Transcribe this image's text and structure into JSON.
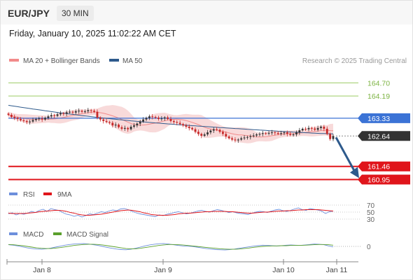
{
  "header": {
    "symbol": "EUR/JPY",
    "timeframe": "30 MIN",
    "datetime": "Friday, January 10, 2025 11:02:22 AM CET"
  },
  "colors": {
    "ma20": "#f28b8b",
    "ma50": "#2e5a8c",
    "bollinger_fill": "#f7d4d4",
    "resistance": "#7cb342",
    "pivot": "#3b73d6",
    "support": "#e0151b",
    "rsi": "#6d8fdc",
    "rsi_ma": "#e0151b",
    "macd": "#6d8fdc",
    "macd_signal": "#5aa02c",
    "bull_candle": "#333333",
    "bear_candle": "#c62828",
    "arrow": "#2e5a8c"
  },
  "legend": {
    "ma20": "MA 20 + Bollinger Bands",
    "ma50": "MA 50",
    "credit": "Research © 2025 Trading Central",
    "rsi": "RSI",
    "rsi_ma": "9MA",
    "macd": "MACD",
    "macd_signal": "MACD Signal"
  },
  "chart_data": [
    {
      "type": "candlestick",
      "title": "",
      "x_ticks": [
        "Jan 8",
        "Jan 9",
        "Jan 10",
        "Jan 11"
      ],
      "ylim": [
        160.8,
        165.2
      ],
      "levels": [
        {
          "value": 164.7,
          "label": "164.70",
          "kind": "resistance"
        },
        {
          "value": 164.19,
          "label": "164.19",
          "kind": "resistance"
        },
        {
          "value": 163.33,
          "label": "163.33",
          "kind": "pivot"
        },
        {
          "value": 162.64,
          "label": "162.64",
          "kind": "current"
        },
        {
          "value": 161.46,
          "label": "161.46",
          "kind": "support"
        },
        {
          "value": 160.95,
          "label": "160.95",
          "kind": "support"
        }
      ],
      "close": [
        163.46,
        163.38,
        163.34,
        163.3,
        163.25,
        163.22,
        163.18,
        163.2,
        163.26,
        163.3,
        163.32,
        163.28,
        163.34,
        163.4,
        163.45,
        163.42,
        163.48,
        163.52,
        163.5,
        163.56,
        163.58,
        163.55,
        163.6,
        163.62,
        163.58,
        163.6,
        163.64,
        163.62,
        163.58,
        163.35,
        163.28,
        163.22,
        163.18,
        163.15,
        163.05,
        163.08,
        162.98,
        162.92,
        162.95,
        162.9,
        163.0,
        163.05,
        163.12,
        163.2,
        163.28,
        163.34,
        163.4,
        163.38,
        163.35,
        163.3,
        163.32,
        163.36,
        163.3,
        163.22,
        163.18,
        163.15,
        163.1,
        163.05,
        163.0,
        162.95,
        162.9,
        162.8,
        162.72,
        162.65,
        162.7,
        162.78,
        162.85,
        162.9,
        162.88,
        162.8,
        162.72,
        162.62,
        162.55,
        162.5,
        162.47,
        162.5,
        162.55,
        162.58,
        162.6,
        162.63,
        162.66,
        162.7,
        162.72,
        162.75,
        162.73,
        162.76,
        162.78,
        162.76,
        162.72,
        162.75,
        162.78,
        162.72,
        162.68,
        162.7,
        162.78,
        162.86,
        162.92,
        162.9,
        162.95,
        162.93,
        162.88,
        162.95,
        163.0,
        162.92,
        162.72,
        162.52,
        162.64
      ],
      "ma50_endpoints": [
        163.83,
        162.71
      ],
      "projection": {
        "from": 162.64,
        "to": 160.95
      }
    },
    {
      "type": "line",
      "title": "RSI",
      "y_ticks": [
        "70",
        "50",
        "30"
      ],
      "ylim": [
        20,
        80
      ],
      "series": [
        {
          "name": "RSI",
          "values": [
            45,
            48,
            42,
            46,
            44,
            47,
            52,
            49,
            55,
            58,
            52,
            60,
            57,
            55,
            49,
            44,
            42,
            38,
            41,
            36,
            40,
            45,
            43,
            47,
            51,
            49,
            53,
            56,
            54,
            59,
            60,
            57,
            52,
            48,
            45,
            43,
            41,
            39,
            37,
            42,
            40,
            44,
            46,
            49,
            51,
            48,
            45,
            47,
            50,
            53,
            55,
            52,
            50,
            54,
            57,
            55,
            52,
            49,
            51,
            48,
            46,
            45,
            43,
            47,
            50,
            52,
            51,
            49,
            53,
            56,
            58,
            54,
            52,
            55,
            59,
            62,
            57,
            55,
            60,
            58,
            56,
            53,
            46,
            51,
            53
          ]
        },
        {
          "name": "9MA",
          "values": [
            47,
            46,
            46,
            46,
            46,
            47,
            48,
            49,
            51,
            52,
            53,
            54,
            55,
            55,
            54,
            52,
            49,
            47,
            44,
            42,
            41,
            41,
            42,
            43,
            44,
            46,
            48,
            50,
            52,
            54,
            55,
            56,
            55,
            53,
            51,
            48,
            46,
            43,
            42,
            41,
            41,
            41,
            42,
            43,
            45,
            46,
            47,
            47,
            48,
            49,
            50,
            51,
            51,
            52,
            52,
            52,
            52,
            51,
            51,
            50,
            49,
            48,
            47,
            47,
            48,
            49,
            50,
            50,
            51,
            52,
            53,
            53,
            54,
            54,
            55,
            56,
            56,
            57,
            57,
            57,
            57,
            56,
            55,
            54,
            53
          ]
        }
      ]
    },
    {
      "type": "line",
      "title": "MACD",
      "y_ticks": [
        "0"
      ],
      "ylim": [
        -0.35,
        0.35
      ],
      "series": [
        {
          "name": "MACD",
          "values": [
            0.07,
            0.05,
            0.02,
            -0.02,
            -0.06,
            -0.09,
            -0.11,
            -0.12,
            -0.1,
            -0.07,
            -0.03,
            0.01,
            0.05,
            0.08,
            0.1,
            0.11,
            0.12,
            0.1,
            0.07,
            0.04,
            0.0,
            -0.04,
            -0.08,
            -0.11,
            -0.13,
            -0.14,
            -0.12,
            -0.08,
            -0.03,
            0.02,
            0.06,
            0.09,
            0.11,
            0.12,
            0.1,
            0.07,
            0.04,
            0.02,
            0.01,
            0.0,
            -0.03,
            -0.06,
            -0.09,
            -0.11,
            -0.13,
            -0.14,
            -0.15,
            -0.13,
            -0.11,
            -0.08,
            -0.05,
            -0.02,
            0.01,
            0.03,
            0.05,
            0.04,
            0.03,
            0.02,
            0.03,
            0.05,
            0.06,
            0.05,
            0.04,
            0.06,
            0.08,
            0.1,
            0.09,
            0.07,
            0.02,
            -0.02
          ]
        },
        {
          "name": "MACD Signal",
          "values": [
            0.08,
            0.07,
            0.05,
            0.03,
            0.0,
            -0.03,
            -0.06,
            -0.08,
            -0.09,
            -0.09,
            -0.07,
            -0.05,
            -0.02,
            0.01,
            0.04,
            0.06,
            0.08,
            0.09,
            0.09,
            0.08,
            0.06,
            0.03,
            0.0,
            -0.03,
            -0.06,
            -0.09,
            -0.1,
            -0.1,
            -0.08,
            -0.05,
            -0.02,
            0.01,
            0.04,
            0.06,
            0.08,
            0.08,
            0.07,
            0.06,
            0.04,
            0.02,
            0.0,
            -0.02,
            -0.04,
            -0.06,
            -0.08,
            -0.1,
            -0.11,
            -0.12,
            -0.12,
            -0.11,
            -0.09,
            -0.07,
            -0.04,
            -0.02,
            0.0,
            0.01,
            0.02,
            0.02,
            0.03,
            0.03,
            0.04,
            0.04,
            0.04,
            0.05,
            0.06,
            0.07,
            0.08,
            0.08,
            0.07,
            0.05
          ]
        }
      ]
    }
  ]
}
